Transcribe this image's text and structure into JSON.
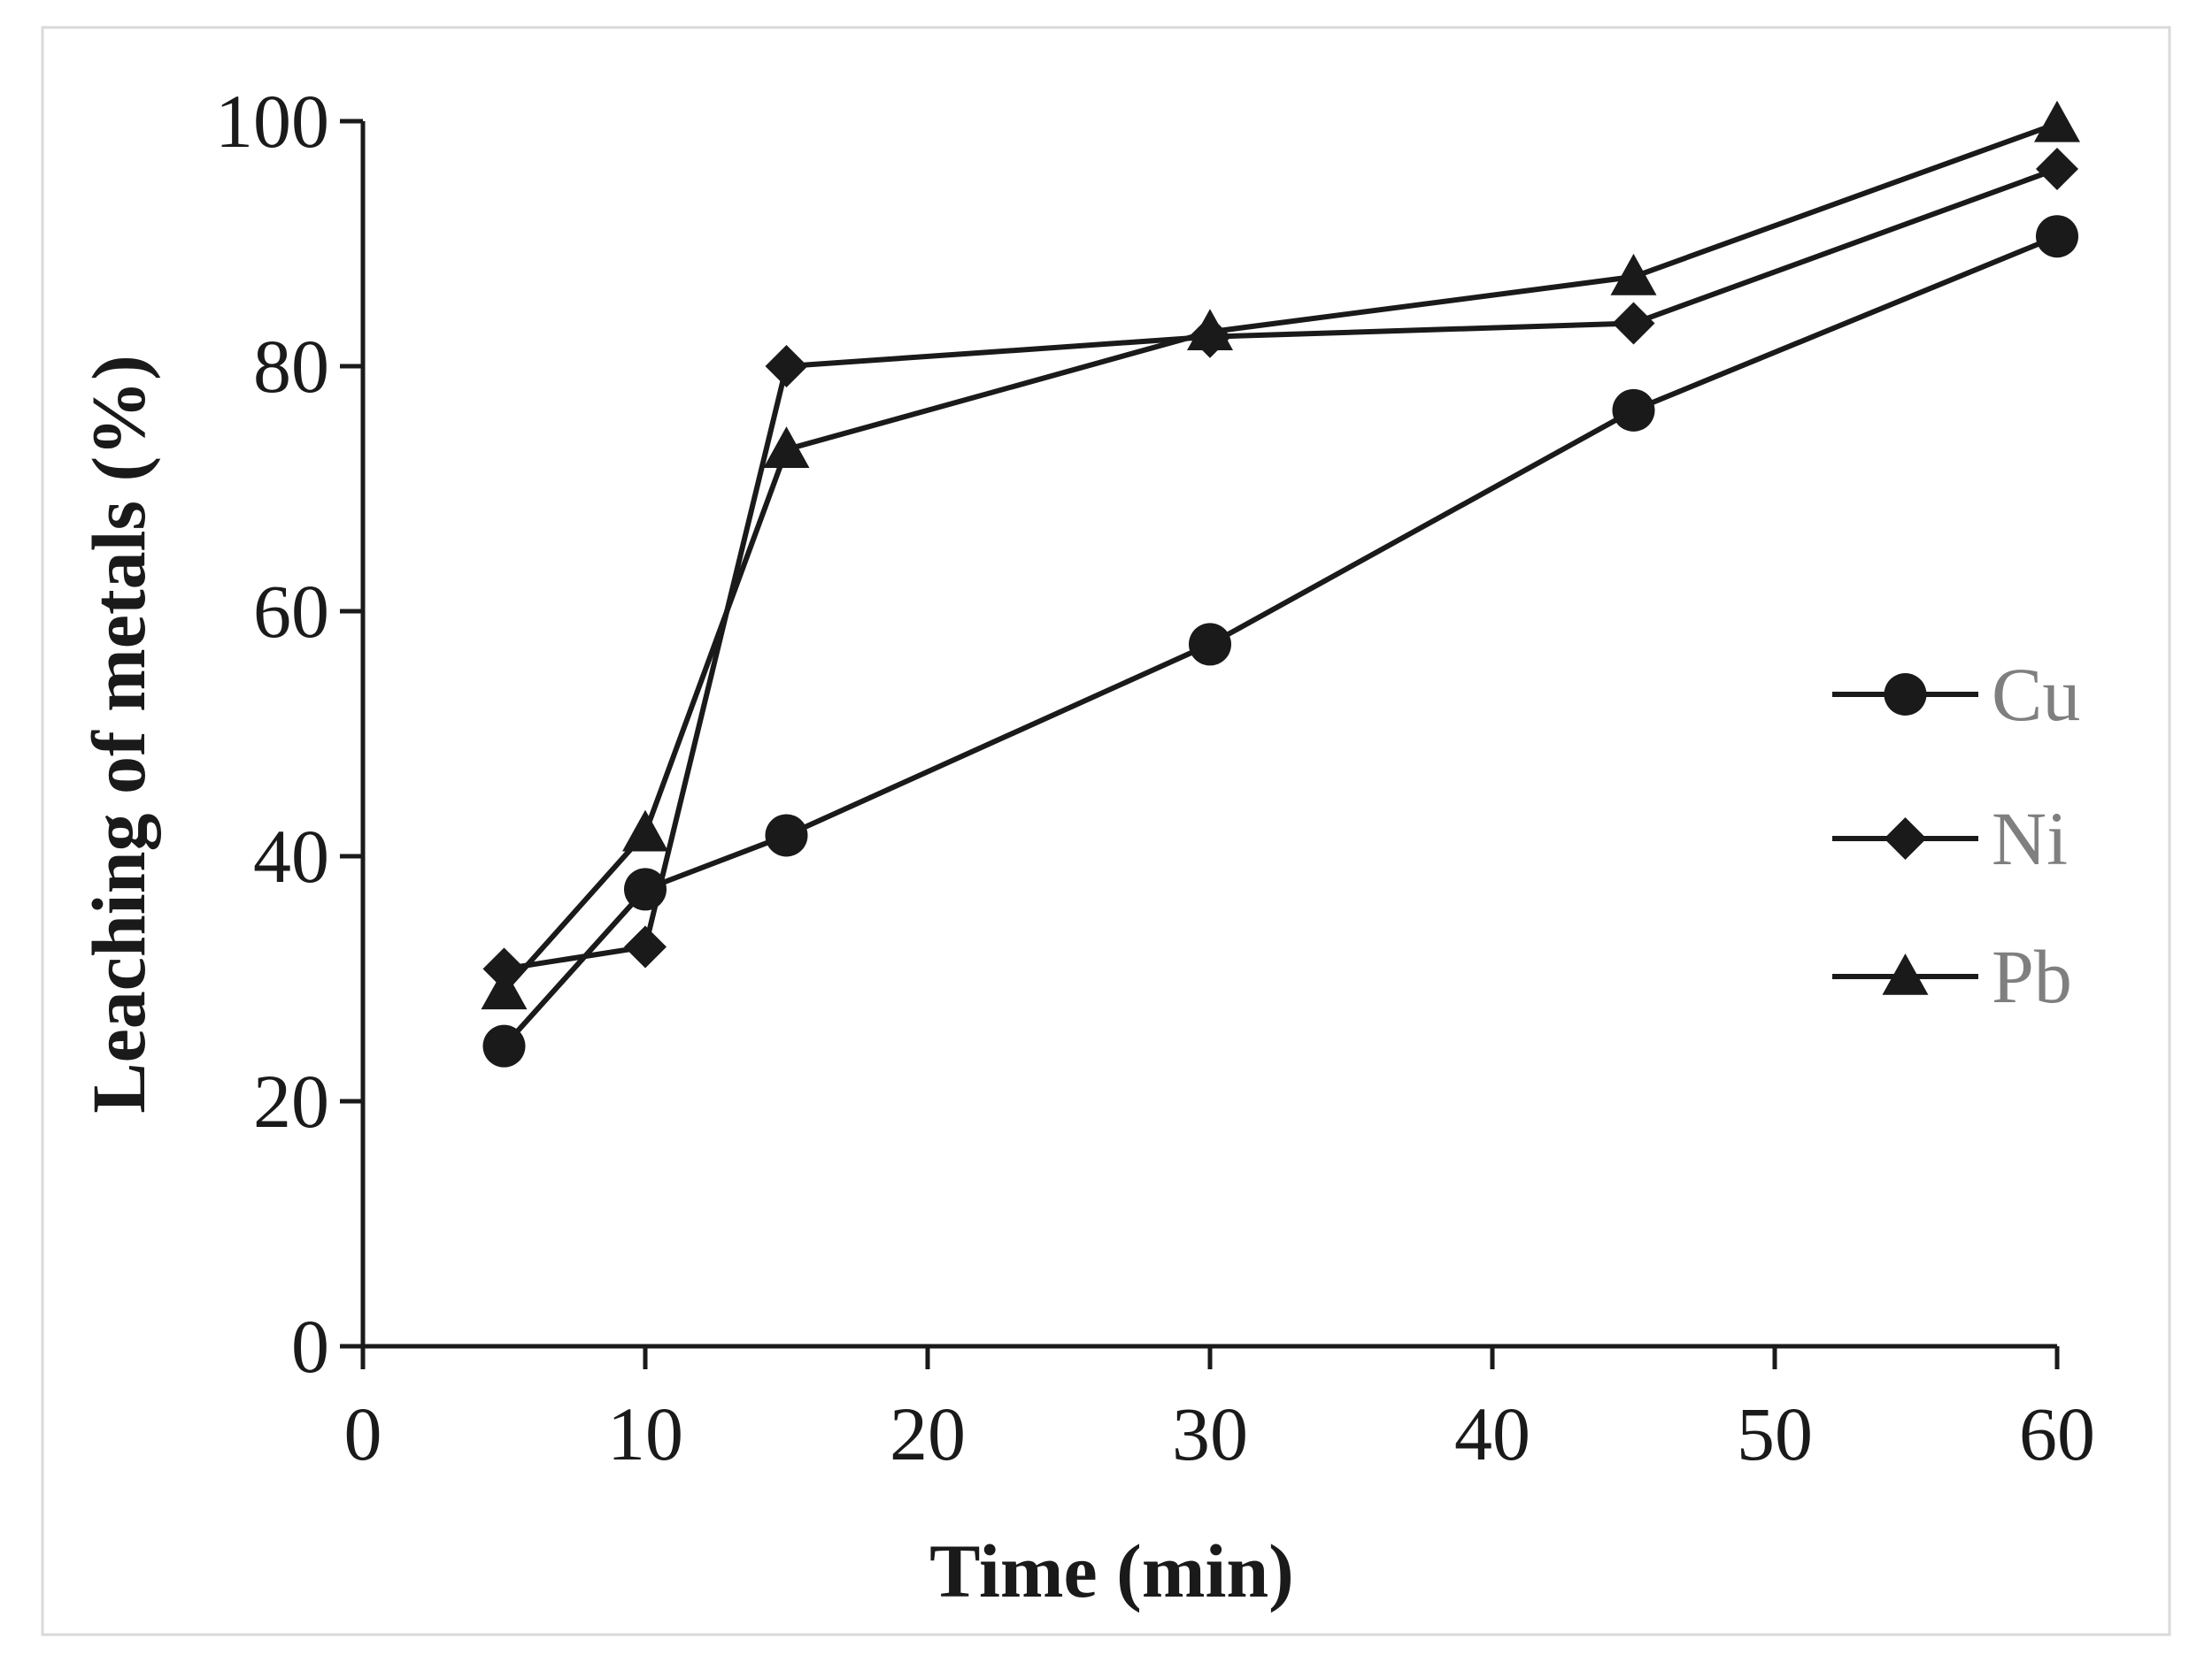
{
  "chart_data": {
    "type": "line",
    "xlabel": "Time (min)",
    "ylabel": "Leaching of metals (%)",
    "xlim": [
      0,
      60
    ],
    "ylim": [
      0,
      100
    ],
    "xticks": [
      0,
      10,
      20,
      30,
      40,
      50,
      60
    ],
    "yticks": [
      0,
      20,
      40,
      60,
      80,
      100
    ],
    "grid": false,
    "legend_position": "right",
    "x": [
      5,
      10,
      15,
      30,
      45,
      60
    ],
    "series": [
      {
        "name": "Cu",
        "marker": "circle",
        "color": "#1a1a1a",
        "values": [
          24.5,
          37.3,
          41.7,
          57.3,
          76.4,
          90.6
        ]
      },
      {
        "name": "Ni",
        "marker": "diamond",
        "color": "#1a1a1a",
        "values": [
          30.8,
          32.6,
          80.0,
          82.4,
          83.5,
          96.1
        ]
      },
      {
        "name": "Pb",
        "marker": "triangle",
        "color": "#1a1a1a",
        "values": [
          29.0,
          41.9,
          73.2,
          82.8,
          87.3,
          99.8
        ]
      }
    ]
  }
}
